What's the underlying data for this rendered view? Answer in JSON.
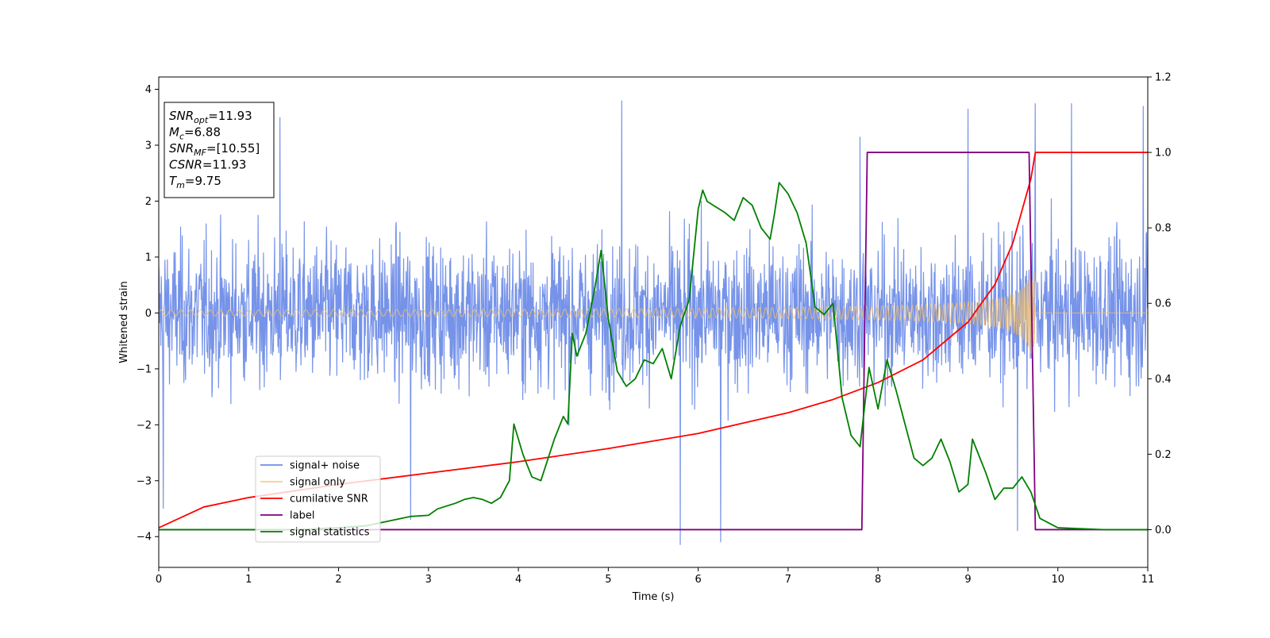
{
  "chart_data": {
    "type": "line",
    "xlabel": "Time (s)",
    "ylabel": "Whitened strain",
    "xlim": [
      0,
      11
    ],
    "ylim_left": [
      -4.55,
      4.22
    ],
    "ylim_right": [
      -0.1,
      1.2
    ],
    "x_ticks": [
      0,
      1,
      2,
      3,
      4,
      5,
      6,
      7,
      8,
      9,
      10,
      11
    ],
    "y_left_ticks": [
      4,
      3,
      2,
      1,
      0,
      -1,
      -2,
      -3,
      -4
    ],
    "y_right_ticks": [
      1.2,
      1.0,
      0.8,
      0.6,
      0.4,
      0.2,
      0.0
    ],
    "y_right_tick_labels": [
      "1.2",
      "1.0",
      "0.8",
      "0.6",
      "0.4",
      "0.2",
      "0.0"
    ],
    "legend_position": "lower-left",
    "series": [
      {
        "name": "signal+ noise",
        "axis": "left",
        "color": "#6f8de8",
        "description_values": "noise band about ±2 strain with spikes to about ±3.8, from t=0 to 11",
        "envelope": [
          2.0,
          2.3
        ],
        "spikes": [
          {
            "x": 0.05,
            "y": -3.5
          },
          {
            "x": 1.35,
            "y": 3.5
          },
          {
            "x": 2.8,
            "y": -3.7
          },
          {
            "x": 5.15,
            "y": 3.8
          },
          {
            "x": 5.8,
            "y": -4.15
          },
          {
            "x": 6.25,
            "y": -4.1
          },
          {
            "x": 7.8,
            "y": 3.15
          },
          {
            "x": 9.0,
            "y": 3.65
          },
          {
            "x": 9.55,
            "y": -3.9
          },
          {
            "x": 9.75,
            "y": 3.75
          },
          {
            "x": 10.15,
            "y": 3.75
          },
          {
            "x": 10.95,
            "y": 3.7
          }
        ]
      },
      {
        "name": "signal only",
        "axis": "left",
        "color": "#f5c26b",
        "description_values": "chirp whose amplitude grows from about 0.05 to about 0.7 at merger time 9.75, zero afterward",
        "merger_time": 9.75
      },
      {
        "name": "cumilative SNR",
        "axis": "right",
        "color": "#ff0000",
        "points": [
          [
            0,
            0.005
          ],
          [
            0.5,
            0.06
          ],
          [
            1,
            0.085
          ],
          [
            2,
            0.12
          ],
          [
            3,
            0.15
          ],
          [
            4,
            0.18
          ],
          [
            5,
            0.215
          ],
          [
            6,
            0.255
          ],
          [
            7,
            0.31
          ],
          [
            7.5,
            0.345
          ],
          [
            8,
            0.39
          ],
          [
            8.5,
            0.45
          ],
          [
            9,
            0.55
          ],
          [
            9.3,
            0.65
          ],
          [
            9.5,
            0.76
          ],
          [
            9.7,
            0.93
          ],
          [
            9.75,
            1.0
          ],
          [
            11,
            1.0
          ]
        ]
      },
      {
        "name": "label",
        "axis": "right",
        "color": "#800080",
        "points": [
          [
            0,
            0.0
          ],
          [
            7.82,
            0.0
          ],
          [
            7.88,
            1.0
          ],
          [
            9.68,
            1.0
          ],
          [
            9.75,
            0.0
          ],
          [
            11,
            0.0
          ]
        ]
      },
      {
        "name": "signal statistics",
        "axis": "right",
        "color": "#008000",
        "points": [
          [
            0,
            0.0
          ],
          [
            0.5,
            0.0
          ],
          [
            1.0,
            0.0
          ],
          [
            1.5,
            0.0
          ],
          [
            2.0,
            0.005
          ],
          [
            2.3,
            0.01
          ],
          [
            2.6,
            0.025
          ],
          [
            2.8,
            0.035
          ],
          [
            3.0,
            0.038
          ],
          [
            3.1,
            0.055
          ],
          [
            3.3,
            0.07
          ],
          [
            3.4,
            0.08
          ],
          [
            3.5,
            0.085
          ],
          [
            3.6,
            0.08
          ],
          [
            3.7,
            0.07
          ],
          [
            3.8,
            0.085
          ],
          [
            3.9,
            0.13
          ],
          [
            3.95,
            0.28
          ],
          [
            4.05,
            0.2
          ],
          [
            4.15,
            0.14
          ],
          [
            4.25,
            0.13
          ],
          [
            4.4,
            0.24
          ],
          [
            4.5,
            0.3
          ],
          [
            4.55,
            0.28
          ],
          [
            4.6,
            0.52
          ],
          [
            4.65,
            0.46
          ],
          [
            4.75,
            0.52
          ],
          [
            4.85,
            0.64
          ],
          [
            4.92,
            0.74
          ],
          [
            5.0,
            0.56
          ],
          [
            5.1,
            0.42
          ],
          [
            5.2,
            0.38
          ],
          [
            5.3,
            0.4
          ],
          [
            5.4,
            0.45
          ],
          [
            5.5,
            0.44
          ],
          [
            5.6,
            0.48
          ],
          [
            5.7,
            0.4
          ],
          [
            5.8,
            0.54
          ],
          [
            5.9,
            0.61
          ],
          [
            6.0,
            0.85
          ],
          [
            6.05,
            0.9
          ],
          [
            6.1,
            0.87
          ],
          [
            6.3,
            0.84
          ],
          [
            6.4,
            0.82
          ],
          [
            6.5,
            0.88
          ],
          [
            6.6,
            0.86
          ],
          [
            6.7,
            0.8
          ],
          [
            6.8,
            0.77
          ],
          [
            6.85,
            0.84
          ],
          [
            6.9,
            0.92
          ],
          [
            7.0,
            0.89
          ],
          [
            7.1,
            0.84
          ],
          [
            7.2,
            0.76
          ],
          [
            7.3,
            0.59
          ],
          [
            7.4,
            0.57
          ],
          [
            7.5,
            0.6
          ],
          [
            7.6,
            0.35
          ],
          [
            7.7,
            0.25
          ],
          [
            7.8,
            0.22
          ],
          [
            7.9,
            0.43
          ],
          [
            8.0,
            0.32
          ],
          [
            8.1,
            0.45
          ],
          [
            8.2,
            0.37
          ],
          [
            8.3,
            0.28
          ],
          [
            8.4,
            0.19
          ],
          [
            8.5,
            0.17
          ],
          [
            8.6,
            0.19
          ],
          [
            8.7,
            0.24
          ],
          [
            8.8,
            0.18
          ],
          [
            8.9,
            0.1
          ],
          [
            9.0,
            0.12
          ],
          [
            9.05,
            0.24
          ],
          [
            9.1,
            0.21
          ],
          [
            9.2,
            0.15
          ],
          [
            9.3,
            0.08
          ],
          [
            9.4,
            0.11
          ],
          [
            9.5,
            0.11
          ],
          [
            9.6,
            0.14
          ],
          [
            9.7,
            0.1
          ],
          [
            9.8,
            0.03
          ],
          [
            10.0,
            0.005
          ],
          [
            10.5,
            0.0
          ],
          [
            11.0,
            0.0
          ]
        ]
      }
    ],
    "annotation": {
      "lines": [
        {
          "name": "SNR",
          "sub": "opt",
          "value": "=11.93"
        },
        {
          "name": "M",
          "sub": "c",
          "value": "=6.88"
        },
        {
          "name": "SNR",
          "sub": "MF",
          "value": "=[10.55]"
        },
        {
          "name": "CSNR",
          "sub": "",
          "value": "=11.93"
        },
        {
          "name": "T",
          "sub": "m",
          "value": "=9.75"
        }
      ]
    },
    "grid": false
  }
}
